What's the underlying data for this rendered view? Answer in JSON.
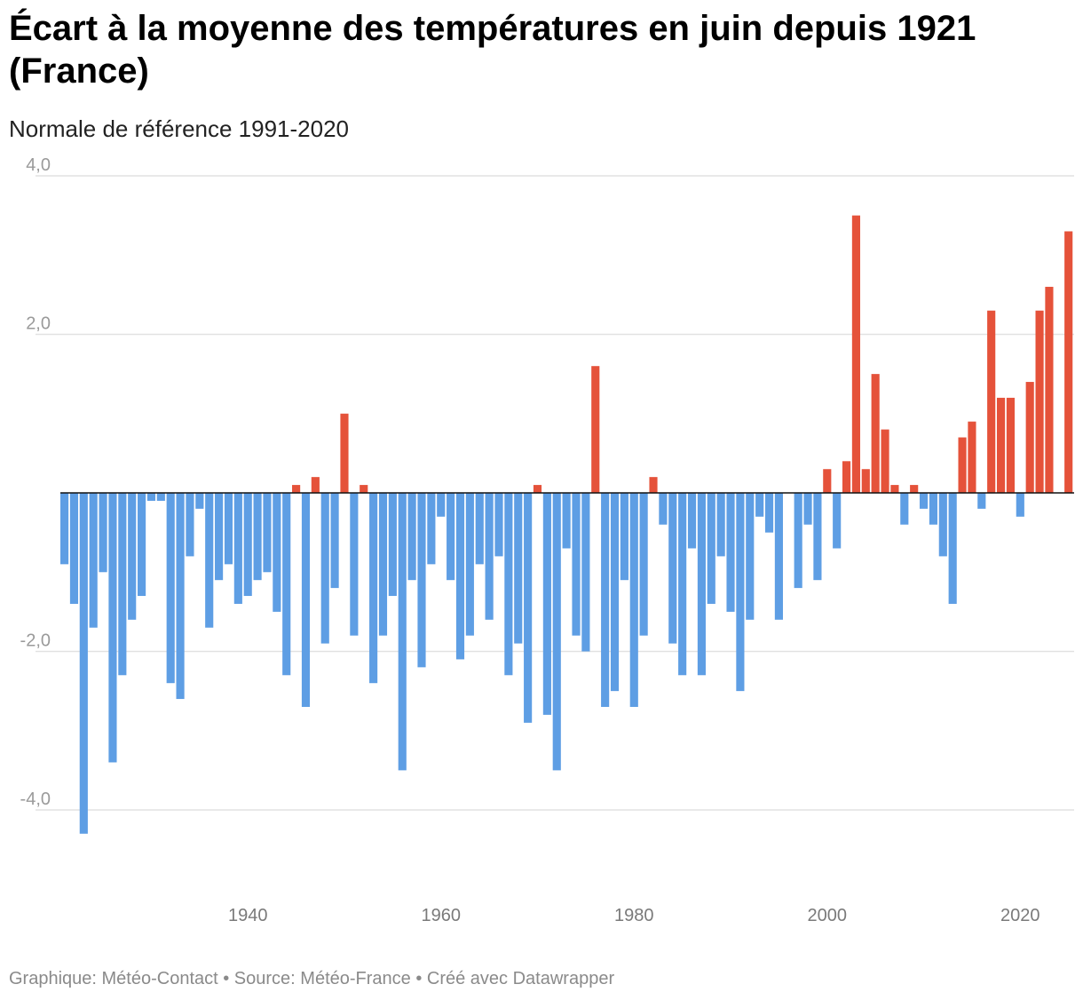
{
  "header": {
    "title": "Écart à la moyenne des températures en juin depuis 1921 (France)",
    "subtitle": "Normale de référence 1991-2020"
  },
  "footer": {
    "credit": "Graphique: Météo-Contact • Source: Météo-France • Créé avec Datawrapper"
  },
  "colors": {
    "positive": "#e5523a",
    "negative": "#5e9ee4",
    "gridline": "#e2e2e2",
    "zero_line": "#111111"
  },
  "chart_data": {
    "type": "bar",
    "title": "Écart à la moyenne des températures en juin depuis 1921 (France)",
    "subtitle": "Normale de référence 1991-2020",
    "xlabel": "",
    "ylabel": "",
    "ylim": [
      -4.8,
      4.0
    ],
    "yticks": [
      -4.0,
      -2.0,
      2.0,
      4.0
    ],
    "ytick_labels": [
      "-4,0",
      "-2,0",
      "2,0",
      "4,0"
    ],
    "xticks": [
      1940,
      1960,
      1980,
      2000,
      2020
    ],
    "xtick_labels": [
      "1940",
      "1960",
      "1980",
      "2000",
      "2020"
    ],
    "grid": true,
    "legend": "none",
    "categories": [
      1921,
      1922,
      1923,
      1924,
      1925,
      1926,
      1927,
      1928,
      1929,
      1930,
      1931,
      1932,
      1933,
      1934,
      1935,
      1936,
      1937,
      1938,
      1939,
      1940,
      1941,
      1942,
      1943,
      1944,
      1945,
      1946,
      1947,
      1948,
      1949,
      1950,
      1951,
      1952,
      1953,
      1954,
      1955,
      1956,
      1957,
      1958,
      1959,
      1960,
      1961,
      1962,
      1963,
      1964,
      1965,
      1966,
      1967,
      1968,
      1969,
      1970,
      1971,
      1972,
      1973,
      1974,
      1975,
      1976,
      1977,
      1978,
      1979,
      1980,
      1981,
      1982,
      1983,
      1984,
      1985,
      1986,
      1987,
      1988,
      1989,
      1990,
      1991,
      1992,
      1993,
      1994,
      1995,
      1996,
      1997,
      1998,
      1999,
      2000,
      2001,
      2002,
      2003,
      2004,
      2005,
      2006,
      2007,
      2008,
      2009,
      2010,
      2011,
      2012,
      2013,
      2014,
      2015,
      2016,
      2017,
      2018,
      2019,
      2020,
      2021,
      2022,
      2023,
      2024,
      2025
    ],
    "values": [
      -0.9,
      -1.4,
      -4.3,
      -1.7,
      -1.0,
      -3.4,
      -2.3,
      -1.6,
      -1.3,
      -0.1,
      -0.1,
      -2.4,
      -2.6,
      -0.8,
      -0.2,
      -1.7,
      -1.1,
      -0.9,
      -1.4,
      -1.3,
      -1.1,
      -1.0,
      -1.5,
      -2.3,
      0.1,
      -2.7,
      0.2,
      -1.9,
      -1.2,
      1.0,
      -1.8,
      0.1,
      -2.4,
      -1.8,
      -1.3,
      -3.5,
      -1.1,
      -2.2,
      -0.9,
      -0.3,
      -1.1,
      -2.1,
      -1.8,
      -0.9,
      -1.6,
      -0.8,
      -2.3,
      -1.9,
      -2.9,
      0.1,
      -2.8,
      -3.5,
      -0.7,
      -1.8,
      -2.0,
      1.6,
      -2.7,
      -2.5,
      -1.1,
      -2.7,
      -1.8,
      0.2,
      -0.4,
      -1.9,
      -2.3,
      -0.7,
      -2.3,
      -1.4,
      -0.8,
      -1.5,
      -2.5,
      -1.6,
      -0.3,
      -0.5,
      -1.6,
      0.0,
      -1.2,
      -0.4,
      -1.1,
      0.3,
      -0.7,
      0.4,
      3.5,
      0.3,
      1.5,
      0.8,
      0.1,
      -0.4,
      0.1,
      -0.2,
      -0.4,
      -0.8,
      -1.4,
      0.7,
      0.9,
      -0.2,
      2.3,
      1.2,
      1.2,
      -0.3,
      1.4,
      2.3,
      2.6,
      0.0,
      3.3
    ]
  }
}
